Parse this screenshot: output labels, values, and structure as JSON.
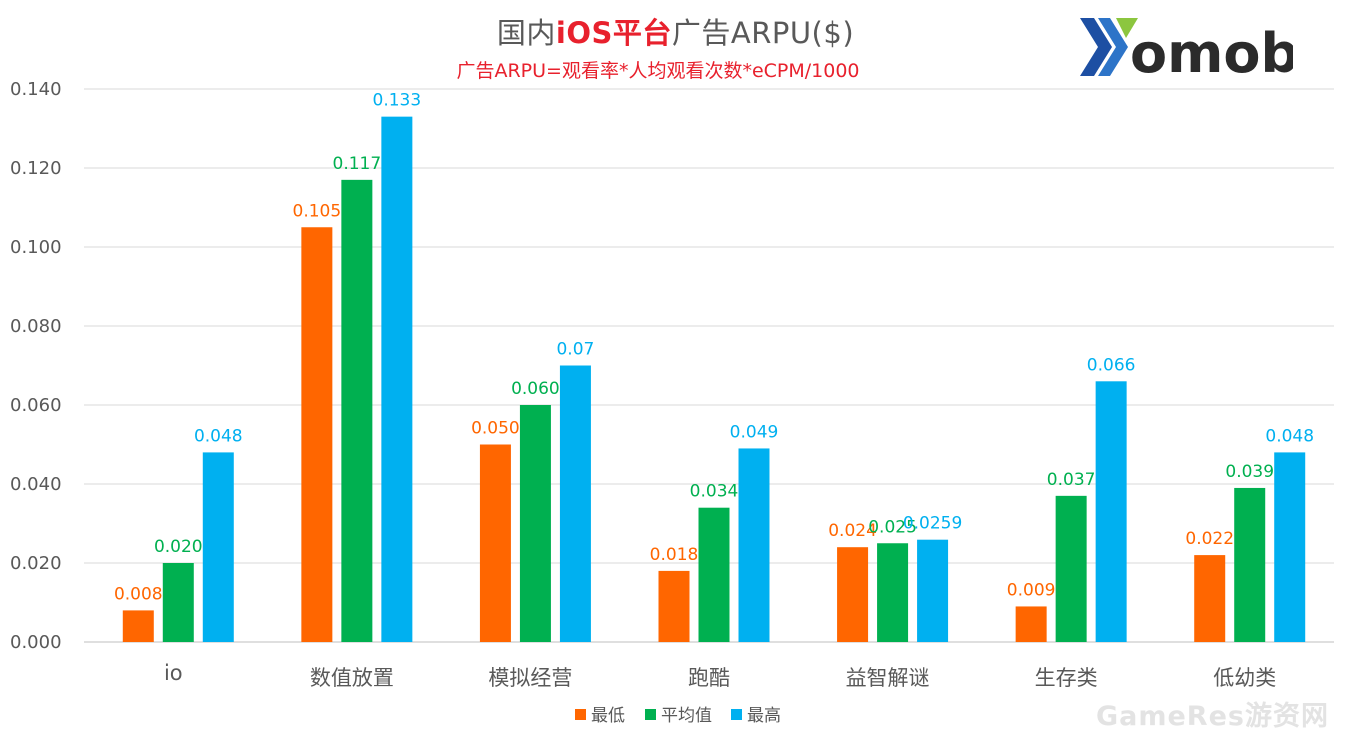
{
  "chart_data": {
    "type": "bar",
    "title_parts": [
      "国内",
      "iOS平台",
      "广告ARPU($)"
    ],
    "subtitle": "广告ARPU=观看率*人均观看次数*eCPM/1000",
    "categories": [
      "io",
      "数值放置",
      "模拟经营",
      "跑酷",
      "益智解谜",
      "生存类",
      "低幼类"
    ],
    "series": [
      {
        "name": "最低",
        "color": "#ff6600",
        "values": [
          0.008,
          0.105,
          0.05,
          0.018,
          0.024,
          0.009,
          0.022
        ],
        "labels": [
          "0.008",
          "0.105",
          "0.050",
          "0.018",
          "0.024",
          "0.009",
          "0.022"
        ]
      },
      {
        "name": "平均值",
        "color": "#00b050",
        "values": [
          0.02,
          0.117,
          0.06,
          0.034,
          0.025,
          0.037,
          0.039
        ],
        "labels": [
          "0.020",
          "0.117",
          "0.060",
          "0.034",
          "0.025",
          "0.037",
          "0.039"
        ]
      },
      {
        "name": "最高",
        "color": "#00b0f0",
        "values": [
          0.048,
          0.133,
          0.07,
          0.049,
          0.0259,
          0.066,
          0.048
        ],
        "labels": [
          "0.048",
          "0.133",
          "0.07",
          "0.049",
          "0.0259",
          "0.066",
          "0.048"
        ]
      }
    ],
    "yticks": [
      "0.000",
      "0.020",
      "0.040",
      "0.060",
      "0.080",
      "0.100",
      "0.120",
      "0.140"
    ],
    "ylim": [
      0,
      0.14
    ],
    "xlabel": "",
    "ylabel": "",
    "grid": true,
    "legend_position": "bottom"
  },
  "logo": {
    "text": "omob"
  },
  "watermark": "GameRes游资网"
}
